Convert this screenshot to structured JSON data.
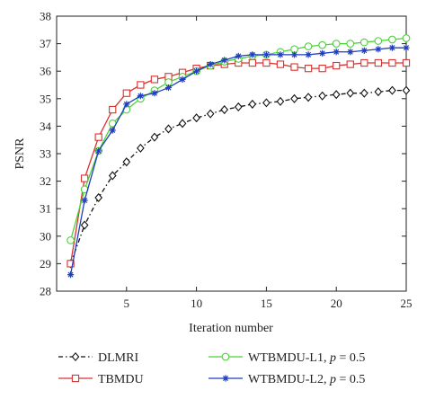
{
  "chart_data": {
    "type": "line",
    "xlabel": "Iteration number",
    "ylabel": "PSNR",
    "xlim": [
      0,
      25
    ],
    "ylim": [
      28,
      38
    ],
    "xticks": [
      5,
      10,
      15,
      20,
      25
    ],
    "yticks": [
      28,
      29,
      30,
      31,
      32,
      33,
      34,
      35,
      36,
      37,
      38
    ],
    "grid": false,
    "legend_position": "bottom",
    "x": [
      1,
      2,
      3,
      4,
      5,
      6,
      7,
      8,
      9,
      10,
      11,
      12,
      13,
      14,
      15,
      16,
      17,
      18,
      19,
      20,
      21,
      22,
      23,
      24,
      25
    ],
    "series": [
      {
        "name": "DLMRI",
        "color": "#111111",
        "marker": "diamond",
        "dash": "dashdot",
        "values": [
          29.0,
          30.4,
          31.4,
          32.2,
          32.7,
          33.2,
          33.6,
          33.9,
          34.1,
          34.3,
          34.45,
          34.6,
          34.7,
          34.8,
          34.85,
          34.9,
          35.0,
          35.05,
          35.1,
          35.15,
          35.2,
          35.2,
          35.25,
          35.3,
          35.3
        ]
      },
      {
        "name": "TBMDU",
        "color": "#d9332f",
        "marker": "square",
        "dash": "solid",
        "values": [
          29.0,
          32.1,
          33.6,
          34.6,
          35.2,
          35.5,
          35.7,
          35.8,
          35.95,
          36.1,
          36.2,
          36.25,
          36.3,
          36.3,
          36.3,
          36.25,
          36.15,
          36.1,
          36.1,
          36.2,
          36.25,
          36.3,
          36.3,
          36.3,
          36.3
        ]
      },
      {
        "name_parts": [
          "WTBMDU-L1, ",
          "p",
          " = 0.5"
        ],
        "color": "#4cd137",
        "marker": "circle",
        "dash": "solid",
        "values": [
          29.85,
          31.7,
          33.1,
          34.1,
          34.6,
          35.0,
          35.3,
          35.6,
          35.8,
          36.0,
          36.2,
          36.35,
          36.45,
          36.55,
          36.6,
          36.7,
          36.8,
          36.9,
          36.95,
          37.0,
          37.0,
          37.05,
          37.1,
          37.15,
          37.2
        ]
      },
      {
        "name_parts": [
          "WTBMDU-L2, ",
          "p",
          " = 0.5"
        ],
        "color": "#1f3fbf",
        "marker": "star",
        "dash": "solid",
        "values": [
          28.6,
          31.3,
          33.1,
          33.85,
          34.8,
          35.1,
          35.2,
          35.4,
          35.7,
          36.0,
          36.25,
          36.4,
          36.55,
          36.6,
          36.6,
          36.6,
          36.6,
          36.6,
          36.65,
          36.7,
          36.7,
          36.75,
          36.8,
          36.85,
          36.85
        ]
      }
    ]
  }
}
